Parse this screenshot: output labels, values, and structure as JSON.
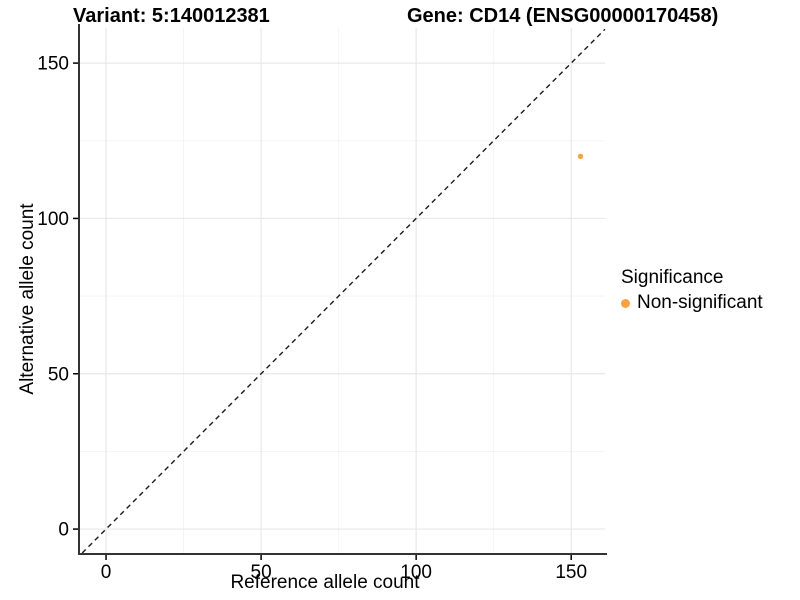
{
  "chart_data": {
    "type": "scatter",
    "titles": {
      "left": "Variant: 5:140012381",
      "right": "Gene: CD14 (ENSG00000170458)"
    },
    "xlabel": "Reference allele count",
    "ylabel": "Alternative allele count",
    "x_ticks": [
      0,
      50,
      100,
      150
    ],
    "y_ticks": [
      0,
      50,
      100,
      150
    ],
    "x_minor_ticks": [
      25,
      75,
      125
    ],
    "y_minor_ticks": [
      25,
      75,
      125
    ],
    "xlim": [
      -8.4,
      160.9
    ],
    "ylim": [
      -7.7,
      161.3
    ],
    "reference_line": {
      "type": "identity",
      "slope": 1,
      "intercept": 0,
      "style": "dashed",
      "color": "#1A1A1A"
    },
    "series": [
      {
        "name": "Non-significant",
        "color": "#F9A242",
        "points": [
          {
            "x": 153,
            "y": 120
          }
        ]
      }
    ],
    "legend": {
      "title": "Significance",
      "position": "right",
      "items": [
        {
          "label": "Non-significant",
          "color": "#F9A242"
        }
      ]
    },
    "grid": {
      "major_color": "#E8E8E8",
      "minor_color": "#F3F3F3",
      "background": "#FFFFFF"
    },
    "axis_color": "#333333",
    "text_color": "#000000"
  }
}
